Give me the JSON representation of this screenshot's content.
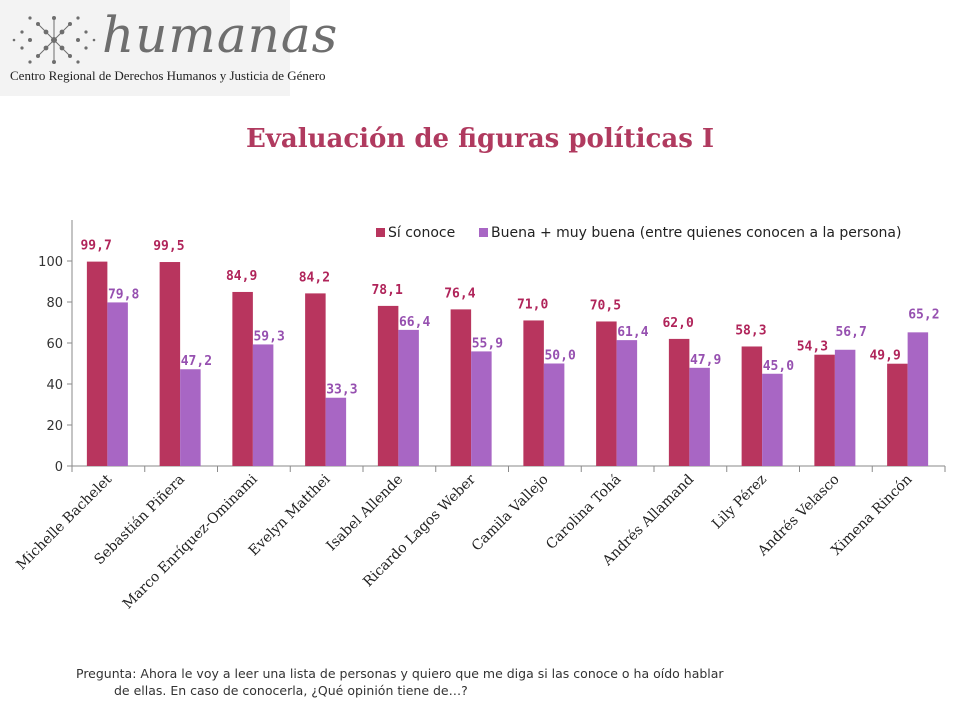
{
  "logo": {
    "name": "humanas",
    "subtitle": "Centro Regional de Derechos Humanos y Justicia de Género"
  },
  "colors": {
    "title": "#b03a5f",
    "series_1": "#b8355e",
    "series_2": "#a866c4",
    "label_1": "#b0245a",
    "label_2": "#9650b0"
  },
  "chart_data": {
    "type": "bar",
    "title": "Evaluación de figuras políticas I",
    "categories": [
      "Michelle Bachelet",
      "Sebastián Piñera",
      "Marco Enríquez-Ominami",
      "Evelyn Matthei",
      "Isabel Allende",
      "Ricardo Lagos Weber",
      "Camila Vallejo",
      "Carolina Tohá",
      "Andrés Allamand",
      "Lily Pérez",
      "Andrés Velasco",
      "Ximena Rincón"
    ],
    "series": [
      {
        "name": "Sí conoce",
        "values": [
          99.7,
          99.5,
          84.9,
          84.2,
          78.1,
          76.4,
          71.0,
          70.5,
          62.0,
          58.3,
          54.3,
          49.9
        ],
        "labels": [
          "99,7",
          "99,5",
          "84,9",
          "84,2",
          "78,1",
          "76,4",
          "71,0",
          "70,5",
          "62,0",
          "58,3",
          "54,3",
          "49,9"
        ]
      },
      {
        "name": "Buena + muy buena (entre quienes conocen a la persona)",
        "values": [
          79.8,
          47.2,
          59.3,
          33.3,
          66.4,
          55.9,
          50.0,
          61.4,
          47.9,
          45.0,
          56.7,
          65.2
        ],
        "labels": [
          "79,8",
          "47,2",
          "59,3",
          "33,3",
          "66,4",
          "55,9",
          "50,0",
          "61,4",
          "47,9",
          "45,0",
          "56,7",
          "65,2"
        ]
      }
    ],
    "yticks": [
      "0",
      "20",
      "40",
      "60",
      "80",
      "100"
    ],
    "ylim": [
      0,
      120
    ],
    "legend_position": "top-right",
    "grid": false
  },
  "footnote": {
    "line1": "Pregunta: Ahora le voy a leer una lista de personas y quiero que me diga si las conoce o ha oído hablar",
    "line2": "de ellas. En caso de conocerla, ¿Qué opinión tiene de…?"
  }
}
